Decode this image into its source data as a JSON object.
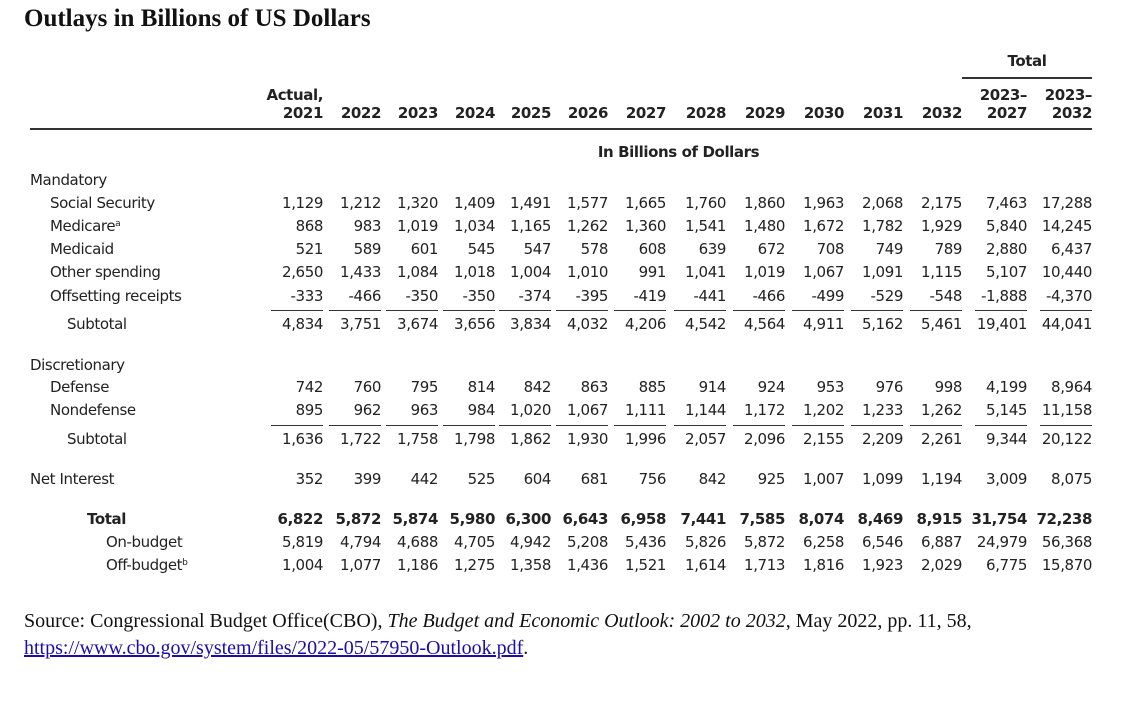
{
  "title": "Outlays in Billions of US Dollars",
  "table": {
    "total_group_label": "Total",
    "header": {
      "label": "",
      "columns": [
        [
          "Actual,",
          "2021"
        ],
        [
          "",
          "2022"
        ],
        [
          "",
          "2023"
        ],
        [
          "",
          "2024"
        ],
        [
          "",
          "2025"
        ],
        [
          "",
          "2026"
        ],
        [
          "",
          "2027"
        ],
        [
          "",
          "2028"
        ],
        [
          "",
          "2029"
        ],
        [
          "",
          "2030"
        ],
        [
          "",
          "2031"
        ],
        [
          "",
          "2032"
        ],
        [
          "2023–",
          "2027"
        ],
        [
          "2023–",
          "2032"
        ]
      ]
    },
    "units_label": "In Billions of Dollars",
    "sections": {
      "mandatory": "Mandatory",
      "discretionary": "Discretionary"
    },
    "rows": {
      "social_security": {
        "label": "Social Security",
        "values": [
          "1,129",
          "1,212",
          "1,320",
          "1,409",
          "1,491",
          "1,577",
          "1,665",
          "1,760",
          "1,860",
          "1,963",
          "2,068",
          "2,175",
          "7,463",
          "17,288"
        ]
      },
      "medicare": {
        "label": "Medicare",
        "sup": "a",
        "values": [
          "868",
          "983",
          "1,019",
          "1,034",
          "1,165",
          "1,262",
          "1,360",
          "1,541",
          "1,480",
          "1,672",
          "1,782",
          "1,929",
          "5,840",
          "14,245"
        ]
      },
      "medicaid": {
        "label": "Medicaid",
        "values": [
          "521",
          "589",
          "601",
          "545",
          "547",
          "578",
          "608",
          "639",
          "672",
          "708",
          "749",
          "789",
          "2,880",
          "6,437"
        ]
      },
      "other_spending": {
        "label": "Other spending",
        "values": [
          "2,650",
          "1,433",
          "1,084",
          "1,018",
          "1,004",
          "1,010",
          "991",
          "1,041",
          "1,019",
          "1,067",
          "1,091",
          "1,115",
          "5,107",
          "10,440"
        ]
      },
      "offsetting_receipts": {
        "label": "Offsetting receipts",
        "values": [
          "-333",
          "-466",
          "-350",
          "-350",
          "-374",
          "-395",
          "-419",
          "-441",
          "-466",
          "-499",
          "-529",
          "-548",
          "-1,888",
          "-4,370"
        ]
      },
      "mandatory_subtotal": {
        "label": "Subtotal",
        "values": [
          "4,834",
          "3,751",
          "3,674",
          "3,656",
          "3,834",
          "4,032",
          "4,206",
          "4,542",
          "4,564",
          "4,911",
          "5,162",
          "5,461",
          "19,401",
          "44,041"
        ]
      },
      "defense": {
        "label": "Defense",
        "values": [
          "742",
          "760",
          "795",
          "814",
          "842",
          "863",
          "885",
          "914",
          "924",
          "953",
          "976",
          "998",
          "4,199",
          "8,964"
        ]
      },
      "nondefense": {
        "label": "Nondefense",
        "values": [
          "895",
          "962",
          "963",
          "984",
          "1,020",
          "1,067",
          "1,111",
          "1,144",
          "1,172",
          "1,202",
          "1,233",
          "1,262",
          "5,145",
          "11,158"
        ]
      },
      "discretionary_subtotal": {
        "label": "Subtotal",
        "values": [
          "1,636",
          "1,722",
          "1,758",
          "1,798",
          "1,862",
          "1,930",
          "1,996",
          "2,057",
          "2,096",
          "2,155",
          "2,209",
          "2,261",
          "9,344",
          "20,122"
        ]
      },
      "net_interest": {
        "label": "Net Interest",
        "values": [
          "352",
          "399",
          "442",
          "525",
          "604",
          "681",
          "756",
          "842",
          "925",
          "1,007",
          "1,099",
          "1,194",
          "3,009",
          "8,075"
        ]
      },
      "total": {
        "label": "Total",
        "values": [
          "6,822",
          "5,872",
          "5,874",
          "5,980",
          "6,300",
          "6,643",
          "6,958",
          "7,441",
          "7,585",
          "8,074",
          "8,469",
          "8,915",
          "31,754",
          "72,238"
        ]
      },
      "on_budget": {
        "label": "On-budget",
        "values": [
          "5,819",
          "4,794",
          "4,688",
          "4,705",
          "4,942",
          "5,208",
          "5,436",
          "5,826",
          "5,872",
          "6,258",
          "6,546",
          "6,887",
          "24,979",
          "56,368"
        ]
      },
      "off_budget": {
        "label": "Off-budget",
        "sup": "b",
        "values": [
          "1,004",
          "1,077",
          "1,186",
          "1,275",
          "1,358",
          "1,436",
          "1,521",
          "1,614",
          "1,713",
          "1,816",
          "1,923",
          "2,029",
          "6,775",
          "15,870"
        ]
      }
    }
  },
  "source": {
    "prefix": "Source: Congressional Budget Office(CBO), ",
    "publication": "The Budget and Economic Outlook: 2002 to 2032",
    "suffix": ", May 2022, pp. 11, 58, ",
    "link_text": "https://www.cbo.gov/system/files/2022-05/57950-Outlook.pdf",
    "end": "."
  }
}
